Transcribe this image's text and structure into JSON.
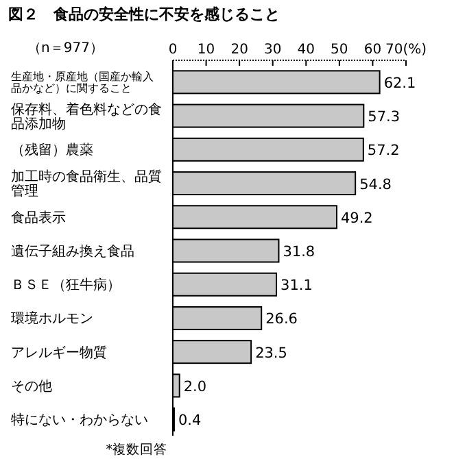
{
  "chart_data": {
    "type": "bar",
    "orientation": "horizontal",
    "title": "図２　食品の安全性に不安を感じること",
    "categories": [
      "生産地・原産地（国産か輸入品かなど）に関すること",
      "保存料、着色料などの食品添加物",
      "（残留）農薬",
      "加工時の食品衛生、品質管理",
      "食品表示",
      "遺伝子組み換え食品",
      "ＢＳＥ（狂牛病）",
      "環境ホルモン",
      "アレルギー物質",
      "その他",
      "特にない・わからない"
    ],
    "values": [
      62.1,
      57.3,
      57.2,
      54.8,
      49.2,
      31.8,
      31.1,
      26.6,
      23.5,
      2.0,
      0.4
    ],
    "value_labels": [
      "62.1",
      "57.3",
      "57.2",
      "54.8",
      "49.2",
      "31.8",
      "31.1",
      "26.6",
      "23.5",
      "2.0",
      "0.4"
    ],
    "color": "#c8c8c8",
    "xlim": [
      0,
      70
    ],
    "xticks": [
      0,
      10,
      20,
      30,
      40,
      50,
      60,
      {
        "value": 70,
        "label": "70(%)"
      }
    ],
    "annotations": [
      "（n＝977）",
      "*複数回答"
    ],
    "grid": false
  }
}
